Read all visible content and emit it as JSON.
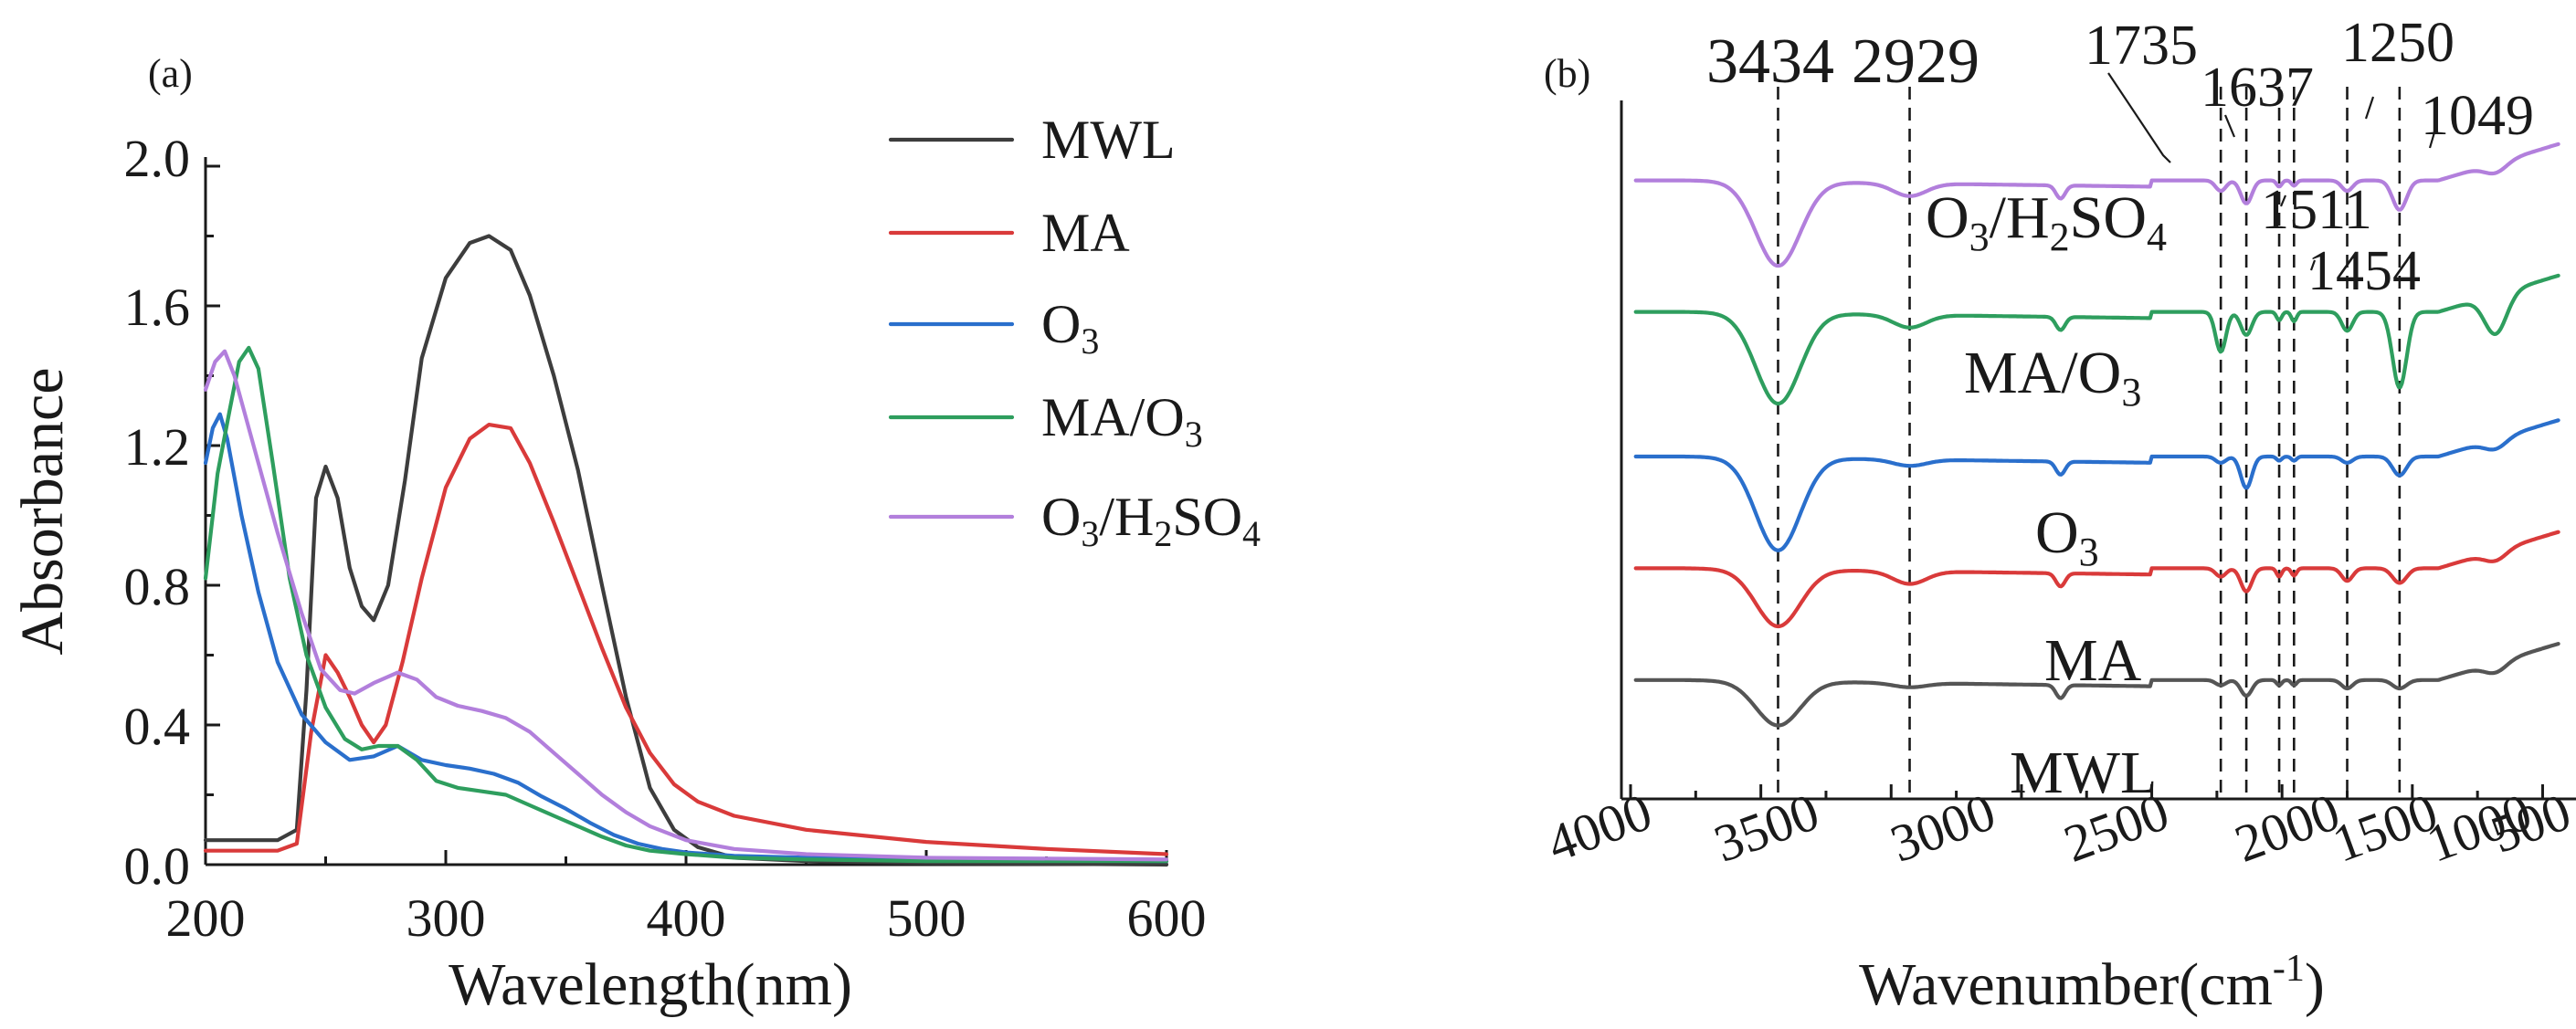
{
  "chart_data": [
    {
      "type": "line",
      "panel_label": "(a)",
      "xlabel": "Wavelength(nm)",
      "ylabel": "Absorbance",
      "xlim": [
        200,
        600
      ],
      "ylim": [
        0,
        2.0
      ],
      "xticks": [
        "200",
        "300",
        "400",
        "500",
        "600"
      ],
      "yticks": [
        "0.0",
        "0.4",
        "0.8",
        "1.2",
        "1.6",
        "2.0"
      ],
      "legend_position": "right",
      "series": [
        {
          "name": "MWL",
          "legend_text": "MWL",
          "color": "#3d3d3d",
          "points": [
            [
              200,
              0.07
            ],
            [
              215,
              0.07
            ],
            [
              230,
              0.07
            ],
            [
              238,
              0.1
            ],
            [
              242,
              0.5
            ],
            [
              246,
              1.05
            ],
            [
              250,
              1.14
            ],
            [
              255,
              1.05
            ],
            [
              260,
              0.85
            ],
            [
              265,
              0.74
            ],
            [
              270,
              0.7
            ],
            [
              276,
              0.8
            ],
            [
              283,
              1.1
            ],
            [
              290,
              1.45
            ],
            [
              300,
              1.68
            ],
            [
              310,
              1.78
            ],
            [
              318,
              1.8
            ],
            [
              327,
              1.76
            ],
            [
              335,
              1.63
            ],
            [
              345,
              1.4
            ],
            [
              355,
              1.13
            ],
            [
              365,
              0.8
            ],
            [
              375,
              0.48
            ],
            [
              385,
              0.22
            ],
            [
              395,
              0.1
            ],
            [
              405,
              0.05
            ],
            [
              420,
              0.02
            ],
            [
              450,
              0.01
            ],
            [
              500,
              0.005
            ],
            [
              600,
              0.0
            ]
          ]
        },
        {
          "name": "MA",
          "legend_text": "MA",
          "color": "#d93a3a",
          "points": [
            [
              200,
              0.04
            ],
            [
              215,
              0.04
            ],
            [
              230,
              0.04
            ],
            [
              238,
              0.06
            ],
            [
              244,
              0.38
            ],
            [
              250,
              0.6
            ],
            [
              255,
              0.55
            ],
            [
              260,
              0.48
            ],
            [
              265,
              0.4
            ],
            [
              270,
              0.35
            ],
            [
              275,
              0.4
            ],
            [
              282,
              0.58
            ],
            [
              290,
              0.82
            ],
            [
              300,
              1.08
            ],
            [
              310,
              1.22
            ],
            [
              318,
              1.26
            ],
            [
              327,
              1.25
            ],
            [
              335,
              1.15
            ],
            [
              345,
              0.98
            ],
            [
              355,
              0.8
            ],
            [
              365,
              0.62
            ],
            [
              375,
              0.45
            ],
            [
              385,
              0.32
            ],
            [
              395,
              0.23
            ],
            [
              405,
              0.18
            ],
            [
              420,
              0.14
            ],
            [
              450,
              0.1
            ],
            [
              500,
              0.065
            ],
            [
              550,
              0.045
            ],
            [
              600,
              0.03
            ]
          ]
        },
        {
          "name": "O3",
          "legend_text": "O",
          "legend_sub": "3",
          "color": "#2a6fcc",
          "points": [
            [
              200,
              1.15
            ],
            [
              203,
              1.25
            ],
            [
              206,
              1.29
            ],
            [
              209,
              1.22
            ],
            [
              215,
              1.0
            ],
            [
              222,
              0.78
            ],
            [
              230,
              0.58
            ],
            [
              240,
              0.43
            ],
            [
              250,
              0.35
            ],
            [
              260,
              0.3
            ],
            [
              270,
              0.31
            ],
            [
              280,
              0.34
            ],
            [
              290,
              0.3
            ],
            [
              300,
              0.285
            ],
            [
              310,
              0.275
            ],
            [
              320,
              0.26
            ],
            [
              330,
              0.235
            ],
            [
              340,
              0.195
            ],
            [
              350,
              0.16
            ],
            [
              360,
              0.12
            ],
            [
              370,
              0.085
            ],
            [
              380,
              0.06
            ],
            [
              390,
              0.045
            ],
            [
              400,
              0.035
            ],
            [
              420,
              0.025
            ],
            [
              450,
              0.02
            ],
            [
              500,
              0.015
            ],
            [
              600,
              0.01
            ]
          ]
        },
        {
          "name": "MA/O3",
          "legend_text": "MA/O",
          "legend_sub": "3",
          "color": "#2e9e5e",
          "points": [
            [
              200,
              0.82
            ],
            [
              205,
              1.12
            ],
            [
              210,
              1.3
            ],
            [
              214,
              1.44
            ],
            [
              218,
              1.48
            ],
            [
              222,
              1.42
            ],
            [
              228,
              1.15
            ],
            [
              235,
              0.82
            ],
            [
              242,
              0.6
            ],
            [
              250,
              0.45
            ],
            [
              258,
              0.36
            ],
            [
              265,
              0.33
            ],
            [
              272,
              0.34
            ],
            [
              280,
              0.34
            ],
            [
              288,
              0.3
            ],
            [
              296,
              0.24
            ],
            [
              305,
              0.22
            ],
            [
              315,
              0.21
            ],
            [
              325,
              0.2
            ],
            [
              335,
              0.17
            ],
            [
              345,
              0.14
            ],
            [
              355,
              0.11
            ],
            [
              365,
              0.08
            ],
            [
              375,
              0.055
            ],
            [
              385,
              0.04
            ],
            [
              400,
              0.03
            ],
            [
              420,
              0.02
            ],
            [
              450,
              0.015
            ],
            [
              500,
              0.01
            ],
            [
              600,
              0.01
            ]
          ]
        },
        {
          "name": "O3/H2SO4",
          "legend_text": "O",
          "legend_sub": "3",
          "legend_text2": "/H",
          "legend_sub2": "2",
          "legend_text3": "SO",
          "legend_sub3": "4",
          "color": "#b27fdc",
          "points": [
            [
              200,
              1.36
            ],
            [
              204,
              1.44
            ],
            [
              208,
              1.47
            ],
            [
              212,
              1.4
            ],
            [
              220,
              1.2
            ],
            [
              230,
              0.95
            ],
            [
              240,
              0.72
            ],
            [
              248,
              0.56
            ],
            [
              256,
              0.5
            ],
            [
              262,
              0.49
            ],
            [
              270,
              0.52
            ],
            [
              280,
              0.55
            ],
            [
              288,
              0.53
            ],
            [
              296,
              0.48
            ],
            [
              305,
              0.455
            ],
            [
              315,
              0.44
            ],
            [
              325,
              0.42
            ],
            [
              335,
              0.38
            ],
            [
              345,
              0.32
            ],
            [
              355,
              0.26
            ],
            [
              365,
              0.2
            ],
            [
              375,
              0.15
            ],
            [
              385,
              0.11
            ],
            [
              400,
              0.07
            ],
            [
              420,
              0.045
            ],
            [
              450,
              0.03
            ],
            [
              500,
              0.02
            ],
            [
              600,
              0.015
            ]
          ]
        }
      ]
    },
    {
      "type": "line",
      "panel_label": "(b)",
      "xlabel_main": "Wavenumber(cm",
      "xlabel_sup": "-1",
      "xlabel_end": ")",
      "xlim": [
        4000,
        400
      ],
      "xticks": [
        "4000",
        "3500",
        "3000",
        "2500",
        "2000",
        "1500",
        "1000",
        "500"
      ],
      "ylabel": "",
      "reference_lines": [
        3434,
        2929,
        1735,
        1637,
        1511,
        1454,
        1250,
        1049
      ],
      "peak_labels": [
        {
          "text": "3434",
          "wavenumber": 3434
        },
        {
          "text": "2929",
          "wavenumber": 2929
        },
        {
          "text": "1735",
          "wavenumber": 1735
        },
        {
          "text": "1637",
          "wavenumber": 1637
        },
        {
          "text": "1250",
          "wavenumber": 1250
        },
        {
          "text": "1049",
          "wavenumber": 1049
        },
        {
          "text": "1511",
          "wavenumber": 1511
        },
        {
          "text": "1454",
          "wavenumber": 1454
        }
      ],
      "series": [
        {
          "name": "O3/H2SO4",
          "label_text": "O",
          "label_sub": "3",
          "label_text2": "/H",
          "label_sub2": "2",
          "label_text3": "SO",
          "label_sub3": "4",
          "color": "#b27fdc",
          "baseline": 0.92,
          "depths": [
            0.8,
            0.12,
            0.1,
            0.22,
            0.06,
            0.05,
            0.1,
            0.28
          ]
        },
        {
          "name": "MA/O3",
          "label_text": "MA/O",
          "label_sub": "3",
          "color": "#2e9e5e",
          "baseline": 0.72,
          "depths": [
            0.86,
            0.12,
            0.38,
            0.22,
            0.08,
            0.09,
            0.18,
            0.72
          ]
        },
        {
          "name": "O3",
          "label_text": "O",
          "label_sub": "3",
          "color": "#2a6fcc",
          "baseline": 0.5,
          "depths": [
            0.88,
            0.06,
            0.06,
            0.3,
            0.04,
            0.04,
            0.06,
            0.18
          ]
        },
        {
          "name": "MA",
          "label_text": "MA",
          "color": "#d93a3a",
          "baseline": 0.33,
          "depths": [
            0.54,
            0.12,
            0.08,
            0.22,
            0.08,
            0.07,
            0.12,
            0.14
          ]
        },
        {
          "name": "MWL",
          "label_text": "MWL",
          "color": "#555555",
          "baseline": 0.16,
          "depths": [
            0.42,
            0.04,
            0.05,
            0.15,
            0.05,
            0.05,
            0.08,
            0.08
          ]
        }
      ]
    }
  ]
}
